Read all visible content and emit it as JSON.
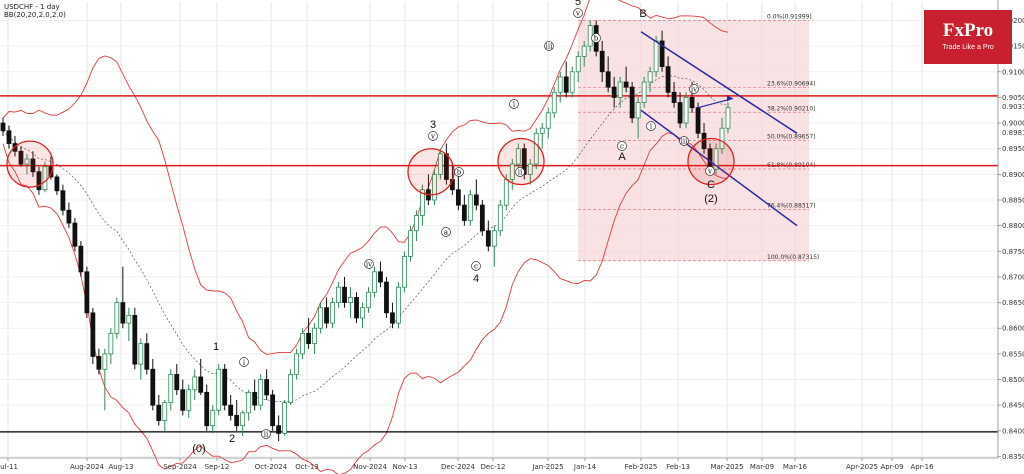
{
  "title": {
    "symbol_line": "USDCHF - 1 day",
    "indicator_line": "BB(20,20,2.0,2.0)"
  },
  "logo": {
    "name": "FxPro",
    "tagline": "Trade Like a Pro"
  },
  "colors": {
    "bull": "#2e8b57",
    "bear": "#111111",
    "band": "#e23a3a",
    "mid": "#555555",
    "channel": "#2a2aa0",
    "hline_red": "#e01818",
    "hline_black": "#000000",
    "fib_fill": "#f6d3d6"
  },
  "chart_data": {
    "type": "candlestick",
    "title": "USDCHF - 1 day",
    "indicator": "BB(20,20,2.0,2.0)",
    "ylim": [
      0.8347,
      0.9236
    ],
    "y_ticks": [
      "0.92000",
      "0.91500",
      "0.91000",
      "0.90500",
      "0.90000",
      "0.89500",
      "0.89000",
      "0.88500",
      "0.88000",
      "0.87500",
      "0.87000",
      "0.86500",
      "0.86000",
      "0.85500",
      "0.85000",
      "0.84500",
      "0.84000",
      "0.83500"
    ],
    "current_price_labels": [
      "0.90319",
      "0.89815"
    ],
    "x_ticks": [
      "Jul-11",
      "Aug-2024",
      "Aug-13",
      "Sep-2024",
      "Sep-12",
      "Oct-2024",
      "Oct-13",
      "Nov-2024",
      "Nov-13",
      "Dec-2024",
      "Dec-12",
      "Jan-2025",
      "Jan-14",
      "Feb-2025",
      "Feb-13",
      "Mar-2025",
      "Mar-09",
      "Mar-16",
      "Apr-2025",
      "Apr-09",
      "Apr-16"
    ],
    "horizontal_lines": [
      {
        "price": 0.9053,
        "color": "red"
      },
      {
        "price": 0.8917,
        "color": "red"
      },
      {
        "price": 0.8398,
        "color": "black"
      }
    ],
    "fibonacci": {
      "levels": [
        "0.0%(0.91999)",
        "23.6%(0.90694)",
        "38.2%(0.90210)",
        "50.0%(0.89657)",
        "61.8%(0.89104)",
        "76.4%(0.88317)",
        "100.0%(0.87315)"
      ],
      "prices": [
        0.91999,
        0.90694,
        0.9021,
        0.89657,
        0.89104,
        0.88317,
        0.87315
      ],
      "start_date": "Jan-2025",
      "end_date": "Mar-2025"
    },
    "channel": {
      "upper": {
        "from": [
          "Feb-2025",
          0.9178
        ],
        "to": [
          "Mar-2025",
          0.898
        ]
      },
      "lower": {
        "from": [
          "Feb-2025",
          0.9025
        ],
        "to": [
          "Mar-2025",
          0.88
        ]
      }
    },
    "wave_labels": [
      "(0)",
      "1",
      "2",
      "3",
      "4",
      "5",
      "A",
      "B",
      "C",
      "(2)"
    ],
    "circle_labels": [
      "i",
      "ii",
      "iii",
      "iv",
      "v",
      "a",
      "b",
      "c"
    ],
    "highlight_zones": [
      {
        "date": "Jul-11",
        "price": 0.892
      },
      {
        "date": "Nov-13",
        "price": 0.8905
      },
      {
        "date": "Dec-12",
        "price": 0.8925
      },
      {
        "date": "Mar-2025",
        "price": 0.8925
      }
    ],
    "forecast_arrow": {
      "from": [
        "Feb-13",
        0.903
      ],
      "to": [
        "Mar-2025",
        0.9048
      ]
    },
    "candles": [
      [
        0.9,
        0.901,
        0.8975,
        0.8985
      ],
      [
        0.8985,
        0.8995,
        0.895,
        0.896
      ],
      [
        0.896,
        0.8975,
        0.8935,
        0.8945
      ],
      [
        0.8945,
        0.8955,
        0.8915,
        0.892
      ],
      [
        0.892,
        0.894,
        0.89,
        0.893
      ],
      [
        0.893,
        0.8945,
        0.8895,
        0.8905
      ],
      [
        0.8905,
        0.8915,
        0.886,
        0.887
      ],
      [
        0.887,
        0.8925,
        0.8865,
        0.8915
      ],
      [
        0.8915,
        0.8935,
        0.889,
        0.8895
      ],
      [
        0.8895,
        0.89,
        0.886,
        0.8868
      ],
      [
        0.8868,
        0.888,
        0.882,
        0.883
      ],
      [
        0.883,
        0.8845,
        0.8795,
        0.8805
      ],
      [
        0.8805,
        0.8815,
        0.875,
        0.876
      ],
      [
        0.876,
        0.877,
        0.87,
        0.871
      ],
      [
        0.871,
        0.872,
        0.862,
        0.863
      ],
      [
        0.863,
        0.864,
        0.853,
        0.8545
      ],
      [
        0.8545,
        0.856,
        0.851,
        0.852
      ],
      [
        0.852,
        0.856,
        0.844,
        0.855
      ],
      [
        0.855,
        0.86,
        0.853,
        0.859
      ],
      [
        0.859,
        0.866,
        0.858,
        0.865
      ],
      [
        0.865,
        0.872,
        0.86,
        0.861
      ],
      [
        0.861,
        0.864,
        0.8575,
        0.8625
      ],
      [
        0.8625,
        0.864,
        0.852,
        0.853
      ],
      [
        0.853,
        0.858,
        0.85,
        0.857
      ],
      [
        0.857,
        0.859,
        0.851,
        0.852
      ],
      [
        0.852,
        0.854,
        0.844,
        0.845
      ],
      [
        0.845,
        0.847,
        0.841,
        0.842
      ],
      [
        0.842,
        0.846,
        0.84,
        0.8455
      ],
      [
        0.8455,
        0.852,
        0.844,
        0.851
      ],
      [
        0.851,
        0.853,
        0.847,
        0.848
      ],
      [
        0.848,
        0.85,
        0.843,
        0.844
      ],
      [
        0.844,
        0.849,
        0.8425,
        0.848
      ],
      [
        0.848,
        0.852,
        0.846,
        0.8505
      ],
      [
        0.8505,
        0.854,
        0.847,
        0.8475
      ],
      [
        0.8475,
        0.849,
        0.84,
        0.841
      ],
      [
        0.841,
        0.845,
        0.8395,
        0.844
      ],
      [
        0.844,
        0.853,
        0.843,
        0.852
      ],
      [
        0.852,
        0.853,
        0.844,
        0.845
      ],
      [
        0.845,
        0.847,
        0.842,
        0.843
      ],
      [
        0.843,
        0.846,
        0.84,
        0.841
      ],
      [
        0.841,
        0.844,
        0.839,
        0.8435
      ],
      [
        0.8435,
        0.848,
        0.842,
        0.8475
      ],
      [
        0.8475,
        0.85,
        0.844,
        0.845
      ],
      [
        0.845,
        0.851,
        0.844,
        0.85
      ],
      [
        0.85,
        0.852,
        0.846,
        0.847
      ],
      [
        0.847,
        0.848,
        0.84,
        0.841
      ],
      [
        0.841,
        0.843,
        0.838,
        0.8395
      ],
      [
        0.8395,
        0.846,
        0.839,
        0.8455
      ],
      [
        0.8455,
        0.852,
        0.845,
        0.851
      ],
      [
        0.851,
        0.856,
        0.85,
        0.855
      ],
      [
        0.855,
        0.86,
        0.854,
        0.859
      ],
      [
        0.859,
        0.862,
        0.856,
        0.857
      ],
      [
        0.857,
        0.861,
        0.855,
        0.86
      ],
      [
        0.86,
        0.865,
        0.859,
        0.864
      ],
      [
        0.864,
        0.866,
        0.86,
        0.861
      ],
      [
        0.861,
        0.866,
        0.86,
        0.865
      ],
      [
        0.865,
        0.869,
        0.864,
        0.868
      ],
      [
        0.868,
        0.87,
        0.864,
        0.865
      ],
      [
        0.865,
        0.868,
        0.862,
        0.866
      ],
      [
        0.866,
        0.867,
        0.861,
        0.862
      ],
      [
        0.862,
        0.865,
        0.86,
        0.864
      ],
      [
        0.864,
        0.868,
        0.863,
        0.867
      ],
      [
        0.867,
        0.872,
        0.866,
        0.871
      ],
      [
        0.871,
        0.873,
        0.868,
        0.869
      ],
      [
        0.869,
        0.87,
        0.862,
        0.863
      ],
      [
        0.863,
        0.865,
        0.86,
        0.861
      ],
      [
        0.861,
        0.869,
        0.86,
        0.868
      ],
      [
        0.868,
        0.875,
        0.867,
        0.874
      ],
      [
        0.874,
        0.88,
        0.873,
        0.879
      ],
      [
        0.879,
        0.883,
        0.877,
        0.882
      ],
      [
        0.882,
        0.888,
        0.88,
        0.887
      ],
      [
        0.887,
        0.89,
        0.884,
        0.885
      ],
      [
        0.885,
        0.891,
        0.884,
        0.89
      ],
      [
        0.89,
        0.895,
        0.889,
        0.894
      ],
      [
        0.894,
        0.896,
        0.888,
        0.889
      ],
      [
        0.889,
        0.892,
        0.886,
        0.887
      ],
      [
        0.887,
        0.89,
        0.883,
        0.884
      ],
      [
        0.884,
        0.886,
        0.88,
        0.881
      ],
      [
        0.881,
        0.887,
        0.88,
        0.886
      ],
      [
        0.886,
        0.889,
        0.883,
        0.884
      ],
      [
        0.884,
        0.885,
        0.878,
        0.879
      ],
      [
        0.879,
        0.881,
        0.875,
        0.876
      ],
      [
        0.876,
        0.88,
        0.872,
        0.879
      ],
      [
        0.879,
        0.885,
        0.878,
        0.884
      ],
      [
        0.884,
        0.89,
        0.883,
        0.889
      ],
      [
        0.889,
        0.893,
        0.887,
        0.892
      ],
      [
        0.892,
        0.896,
        0.89,
        0.895
      ],
      [
        0.895,
        0.896,
        0.889,
        0.89
      ],
      [
        0.89,
        0.893,
        0.888,
        0.892
      ],
      [
        0.892,
        0.899,
        0.891,
        0.898
      ],
      [
        0.898,
        0.9,
        0.895,
        0.899
      ],
      [
        0.899,
        0.903,
        0.897,
        0.902
      ],
      [
        0.902,
        0.907,
        0.901,
        0.906
      ],
      [
        0.906,
        0.91,
        0.904,
        0.909
      ],
      [
        0.909,
        0.912,
        0.905,
        0.906
      ],
      [
        0.906,
        0.911,
        0.905,
        0.91
      ],
      [
        0.91,
        0.914,
        0.908,
        0.913
      ],
      [
        0.913,
        0.916,
        0.911,
        0.915
      ],
      [
        0.915,
        0.92,
        0.914,
        0.919
      ],
      [
        0.919,
        0.92,
        0.913,
        0.914
      ],
      [
        0.914,
        0.916,
        0.908,
        0.91
      ],
      [
        0.91,
        0.913,
        0.906,
        0.907
      ],
      [
        0.907,
        0.909,
        0.903,
        0.905
      ],
      [
        0.905,
        0.909,
        0.903,
        0.908
      ],
      [
        0.908,
        0.911,
        0.906,
        0.907
      ],
      [
        0.907,
        0.908,
        0.9,
        0.901
      ],
      [
        0.901,
        0.905,
        0.897,
        0.904
      ],
      [
        0.904,
        0.909,
        0.903,
        0.908
      ],
      [
        0.908,
        0.911,
        0.906,
        0.91
      ],
      [
        0.91,
        0.917,
        0.909,
        0.916
      ],
      [
        0.916,
        0.918,
        0.91,
        0.911
      ],
      [
        0.911,
        0.913,
        0.905,
        0.906
      ],
      [
        0.906,
        0.908,
        0.903,
        0.904
      ],
      [
        0.904,
        0.906,
        0.899,
        0.9
      ],
      [
        0.9,
        0.906,
        0.899,
        0.905
      ],
      [
        0.905,
        0.908,
        0.902,
        0.903
      ],
      [
        0.903,
        0.904,
        0.897,
        0.898
      ],
      [
        0.898,
        0.9,
        0.894,
        0.895
      ],
      [
        0.895,
        0.896,
        0.89,
        0.891
      ],
      [
        0.891,
        0.896,
        0.89,
        0.895
      ],
      [
        0.895,
        0.901,
        0.894,
        0.899
      ],
      [
        0.899,
        0.904,
        0.898,
        0.903
      ]
    ]
  }
}
